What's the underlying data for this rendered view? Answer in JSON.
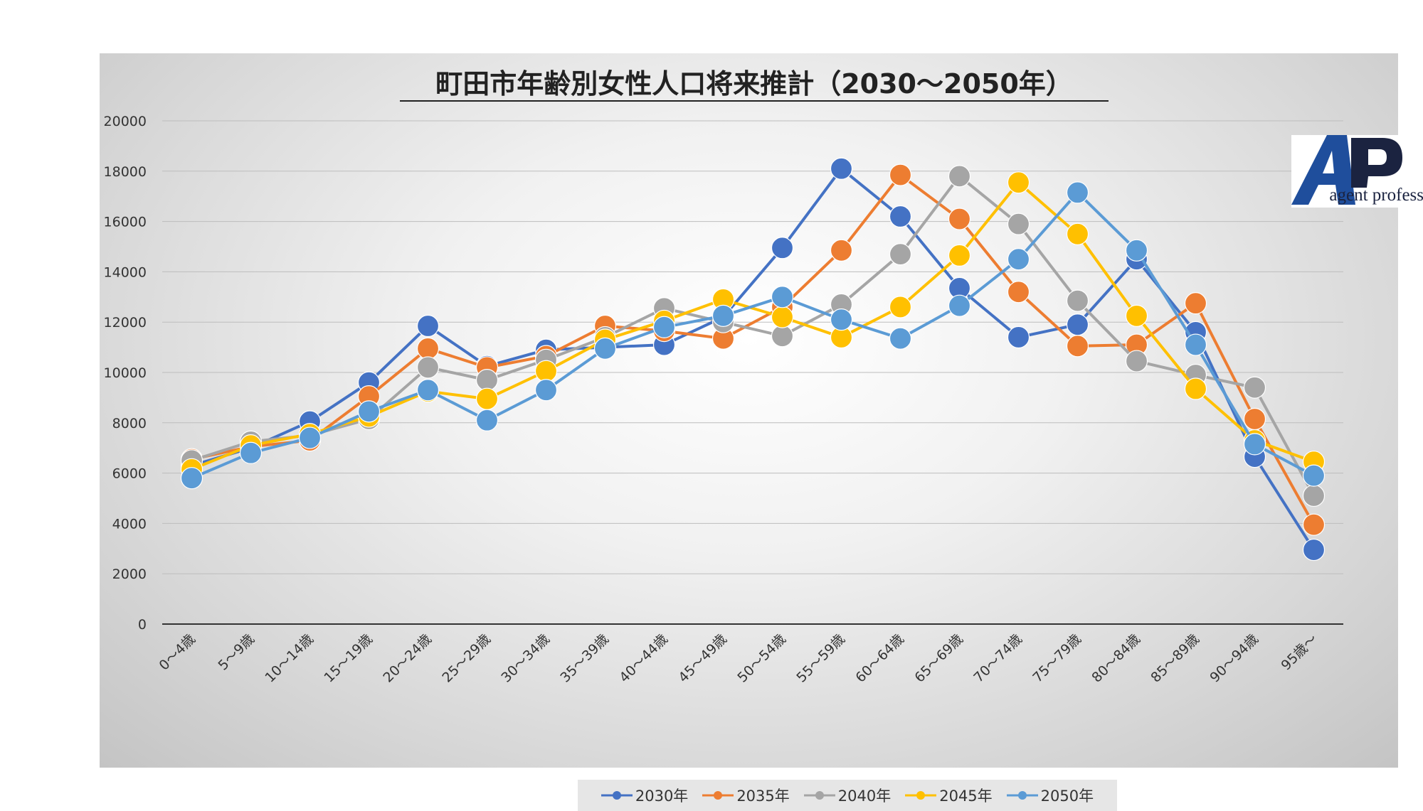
{
  "chart_data": {
    "type": "line",
    "title": "町田市年齢別女性人口将来推計（2030～2050年）",
    "categories": [
      "0～4歳",
      "5～9歳",
      "10～14歳",
      "15～19歳",
      "20～24歳",
      "25～29歳",
      "30～34歳",
      "35～39歳",
      "40～44歳",
      "45～49歳",
      "50～54歳",
      "55～59歳",
      "60～64歳",
      "65～69歳",
      "70～74歳",
      "75～79歳",
      "80～84歳",
      "85～89歳",
      "90～94歳",
      "95歳～"
    ],
    "ylim": [
      0,
      20000
    ],
    "yticks": [
      0,
      2000,
      4000,
      6000,
      8000,
      10000,
      12000,
      14000,
      16000,
      18000,
      20000
    ],
    "grid": true,
    "legend_position": "bottom",
    "series": [
      {
        "name": "2030年",
        "color": "#4472C4",
        "values": [
          6300,
          7000,
          8050,
          9600,
          11850,
          10250,
          10900,
          11000,
          11100,
          12200,
          14950,
          18100,
          16200,
          13350,
          11400,
          11900,
          14500,
          11600,
          6650,
          2950
        ]
      },
      {
        "name": "2035年",
        "color": "#ED7D31",
        "values": [
          6550,
          7050,
          7300,
          9050,
          10950,
          10200,
          10650,
          11850,
          11650,
          11350,
          12600,
          14850,
          17850,
          16100,
          13200,
          11050,
          11100,
          12750,
          8150,
          3950
        ]
      },
      {
        "name": "2040年",
        "color": "#A5A5A5",
        "values": [
          6500,
          7250,
          7500,
          8150,
          10200,
          9700,
          10500,
          11400,
          12550,
          12000,
          11450,
          12700,
          14700,
          17800,
          15900,
          12850,
          10450,
          9900,
          9400,
          5100
        ]
      },
      {
        "name": "2045年",
        "color": "#FFC000",
        "values": [
          6150,
          7100,
          7550,
          8250,
          9250,
          8950,
          10050,
          11300,
          12050,
          12900,
          12200,
          11400,
          12600,
          14650,
          17550,
          15500,
          12250,
          9350,
          7300,
          6450
        ]
      },
      {
        "name": "2050年",
        "color": "#5B9BD5",
        "values": [
          5800,
          6800,
          7400,
          8450,
          9300,
          8100,
          9300,
          10950,
          11800,
          12250,
          13000,
          12100,
          11350,
          12650,
          14500,
          17150,
          14850,
          11100,
          7150,
          5900
        ]
      }
    ]
  },
  "logo": {
    "mark": "AP",
    "text": "agent professional",
    "colors": {
      "dark": "#1b2340",
      "blue": "#1f4e9c"
    }
  }
}
